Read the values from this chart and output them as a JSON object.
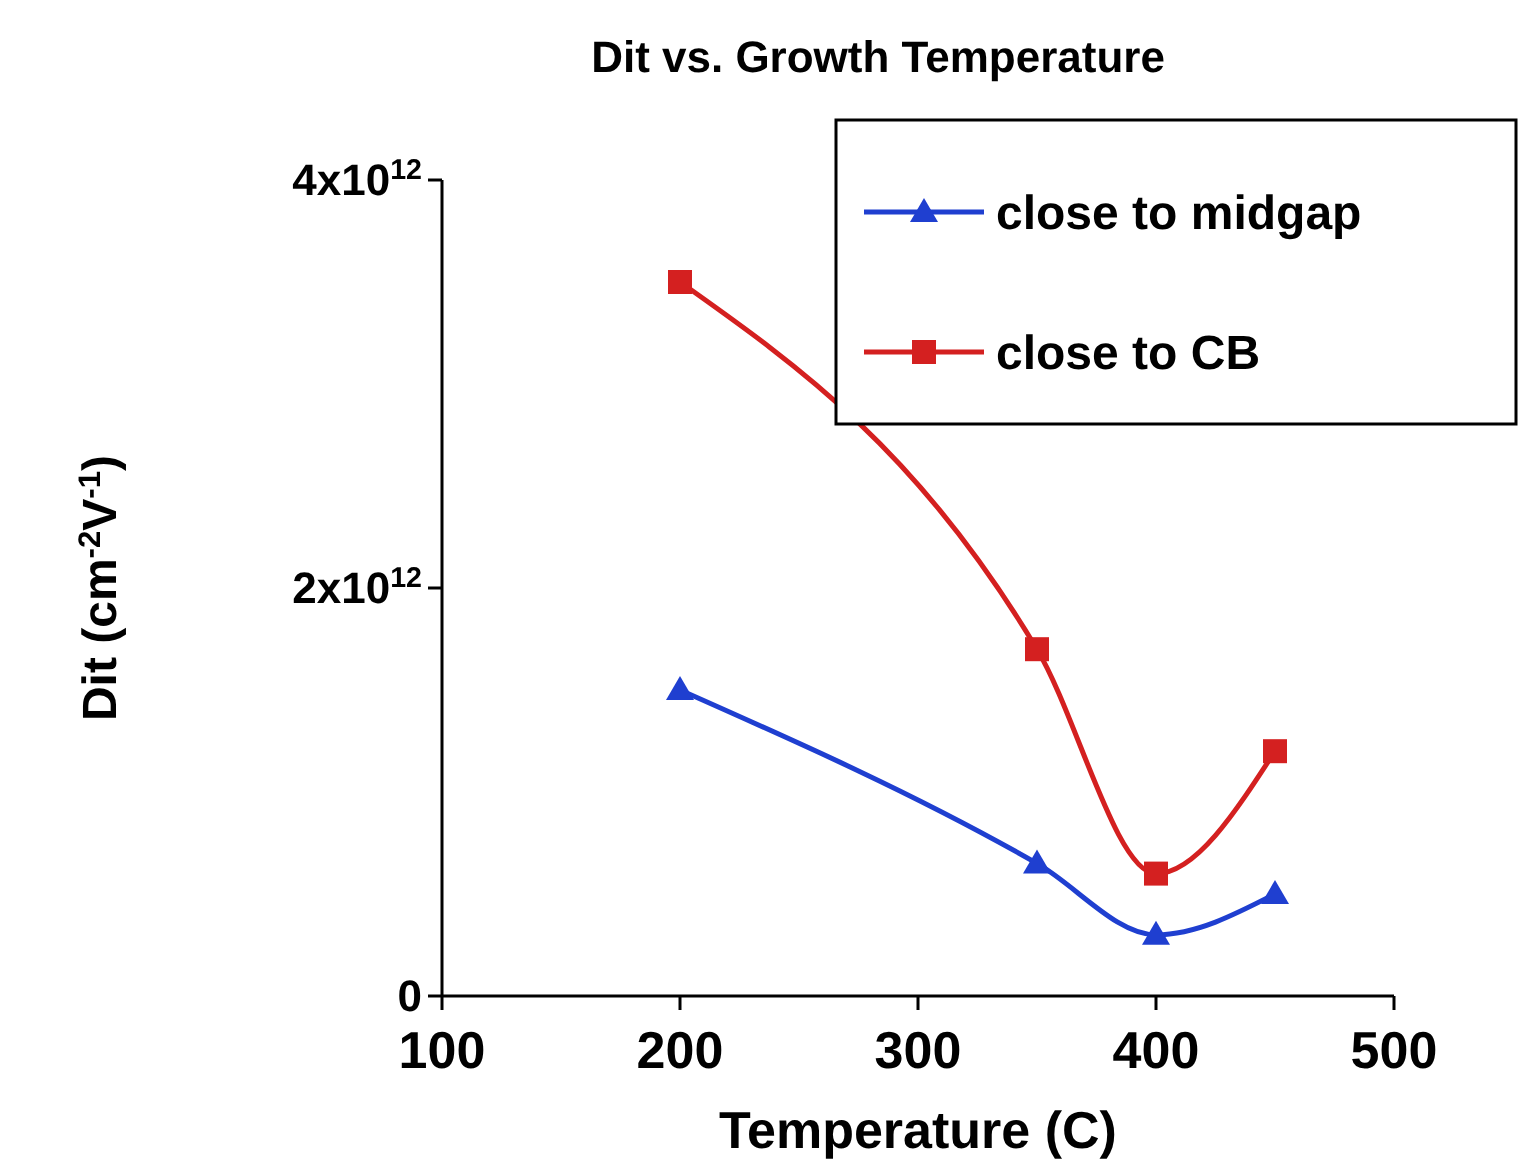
{
  "chart_data": {
    "type": "line",
    "title": "Dit vs. Growth Temperature",
    "xlabel": "Temperature (C)",
    "ylabel": "Dit (cm$^{-2}$V$^{-1}$)",
    "xlim": [
      100,
      500
    ],
    "xticks": [
      100,
      200,
      300,
      400,
      500
    ],
    "ylim": [
      0,
      4000000000000.0
    ],
    "yticks": [
      {
        "value": 0,
        "label": "0"
      },
      {
        "value": 2000000000000.0,
        "label": "2x10$^{12}$"
      },
      {
        "value": 4000000000000.0,
        "label": "4x10$^{12}$"
      }
    ],
    "x": [
      200,
      350,
      400,
      450
    ],
    "series": [
      {
        "name": "close to midgap",
        "color": "#1f3fd0",
        "marker": "triangle",
        "values": [
          1500000000000.0,
          650000000000.0,
          300000000000.0,
          500000000000.0
        ]
      },
      {
        "name": "close to CB",
        "color": "#d42020",
        "marker": "square",
        "values": [
          3500000000000.0,
          1700000000000.0,
          600000000000.0,
          1200000000000.0
        ]
      }
    ],
    "legend": "top right",
    "grid": false
  }
}
